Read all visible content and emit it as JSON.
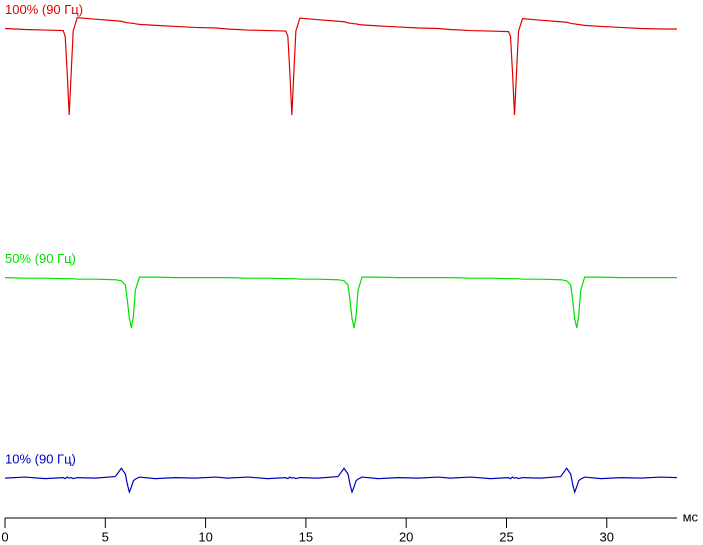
{
  "chart_data": {
    "type": "line",
    "x_label": "мс",
    "x": [
      0,
      1,
      2,
      2.9,
      3,
      3.1,
      3.2,
      3.3,
      3.4,
      3.6,
      4.5,
      5.5,
      5.8,
      6,
      6.1,
      6.2,
      6.3,
      6.4,
      6.5,
      6.7,
      7.5,
      8.5,
      9.5,
      10.5,
      11.1,
      12.1,
      13.1,
      14,
      14.1,
      14.2,
      14.3,
      14.4,
      14.5,
      14.7,
      15.6,
      16.6,
      16.9,
      17.1,
      17.2,
      17.3,
      17.4,
      17.5,
      17.6,
      17.8,
      18.6,
      19.6,
      20.6,
      21.6,
      22.2,
      23.2,
      24.2,
      25.1,
      25.2,
      25.3,
      25.4,
      25.5,
      25.6,
      25.8,
      26.7,
      27.7,
      28,
      28.2,
      28.3,
      28.4,
      28.5,
      28.6,
      28.7,
      28.9,
      29.7,
      30.7,
      31.7,
      32.7,
      33.5
    ],
    "series": [
      {
        "name": "100% (90 Гц)",
        "color": "#e00000",
        "values": [
          94.5,
          94.3,
          94.2,
          94.1,
          93,
          86,
          77.8,
          86,
          94,
          96.6,
          96.3,
          96.0,
          95.9,
          95.7,
          95.6,
          95.6,
          95.5,
          95.5,
          95.4,
          95.3,
          95.1,
          94.9,
          94.7,
          94.6,
          94.4,
          94.2,
          94.1,
          94.0,
          93,
          86,
          77.8,
          86,
          94,
          96.5,
          96.2,
          95.9,
          95.8,
          95.6,
          95.5,
          95.5,
          95.4,
          95.4,
          95.3,
          95.2,
          95.0,
          94.8,
          94.6,
          94.5,
          94.3,
          94.1,
          94.0,
          93.9,
          93,
          86,
          77.8,
          86,
          94,
          96.4,
          96.1,
          95.8,
          95.7,
          95.5,
          95.4,
          95.4,
          95.3,
          95.3,
          95.2,
          95.1,
          94.9,
          94.7,
          94.5,
          94.4,
          94.4
        ]
      },
      {
        "name": "50% (90 Гц)",
        "color": "#00e000",
        "values": [
          46.4,
          46.3,
          46.3,
          46.2,
          46.2,
          46.2,
          46.2,
          46.2,
          46.2,
          46.1,
          46.1,
          46.0,
          45.8,
          45.0,
          42,
          38.5,
          36.7,
          39,
          44,
          46.5,
          46.5,
          46.4,
          46.4,
          46.4,
          46.4,
          46.3,
          46.3,
          46.2,
          46.2,
          46.2,
          46.2,
          46.2,
          46.2,
          46.1,
          46.1,
          46.0,
          45.8,
          45.0,
          42,
          38.5,
          36.7,
          39,
          44,
          46.5,
          46.5,
          46.4,
          46.4,
          46.4,
          46.4,
          46.3,
          46.3,
          46.2,
          46.2,
          46.2,
          46.2,
          46.2,
          46.2,
          46.1,
          46.1,
          46.0,
          45.8,
          45.0,
          42,
          38.5,
          36.7,
          39,
          44,
          46.5,
          46.5,
          46.4,
          46.4,
          46.4,
          46.4
        ]
      },
      {
        "name": "10% (90 Гц)",
        "color": "#0000c0",
        "values": [
          7.7,
          7.9,
          7.6,
          7.8,
          7.6,
          7.9,
          7.7,
          7.8,
          7.6,
          7.8,
          7.7,
          8.0,
          9.6,
          8.5,
          6.5,
          5.0,
          6.0,
          7.2,
          7.5,
          7.9,
          7.6,
          7.8,
          7.7,
          7.9,
          7.7,
          7.9,
          7.6,
          7.8,
          7.6,
          7.9,
          7.7,
          7.8,
          7.6,
          7.8,
          7.7,
          8.0,
          9.6,
          8.5,
          6.5,
          5.0,
          6.0,
          7.2,
          7.5,
          7.9,
          7.6,
          7.8,
          7.7,
          7.9,
          7.7,
          7.9,
          7.6,
          7.8,
          7.6,
          7.9,
          7.7,
          7.8,
          7.6,
          7.8,
          7.7,
          8.0,
          9.6,
          8.5,
          6.5,
          5.0,
          6.0,
          7.2,
          7.5,
          7.9,
          7.6,
          7.8,
          7.7,
          7.9,
          7.8
        ]
      }
    ],
    "xlim": [
      0,
      33.5
    ],
    "xticks": [
      0,
      5,
      10,
      15,
      20,
      25,
      30
    ],
    "ylim": [
      0,
      100
    ]
  }
}
